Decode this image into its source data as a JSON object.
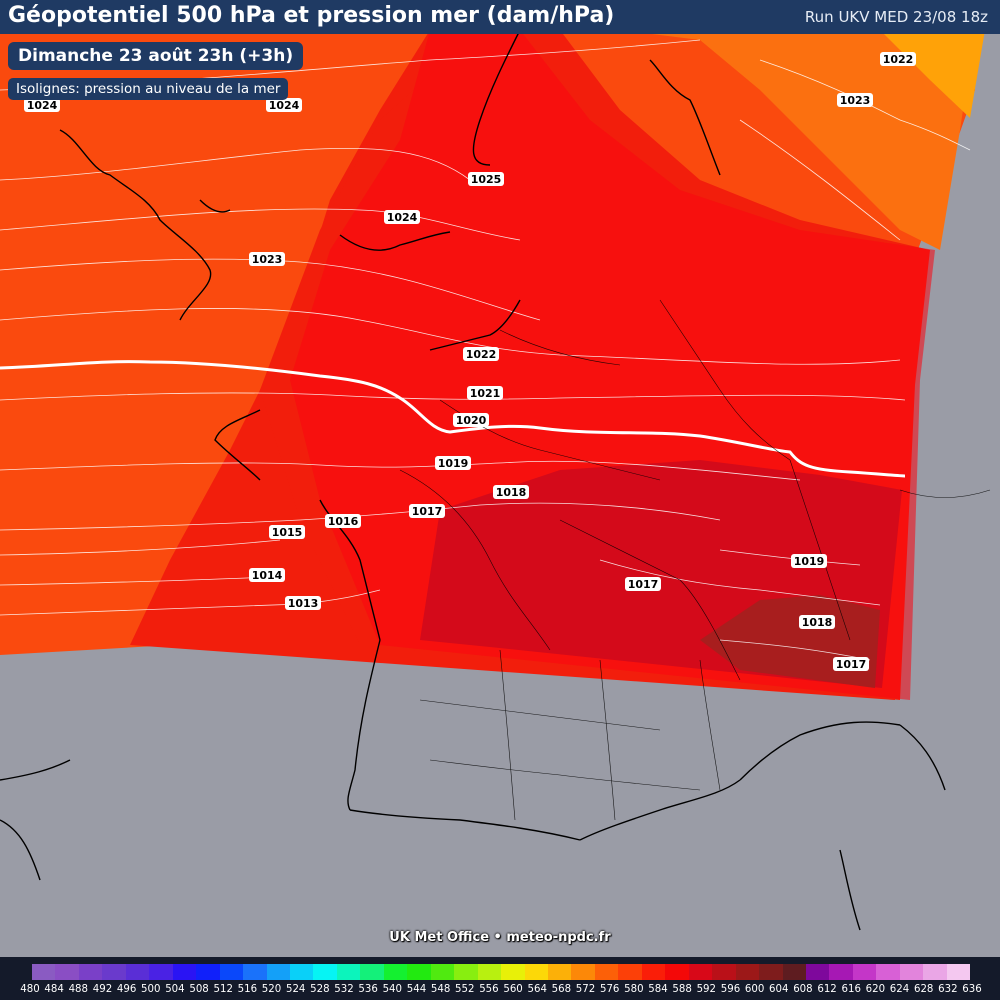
{
  "header": {
    "title": "Géopotentiel 500 hPa et pression mer (dam/hPa)",
    "run": "Run UKV MED 23/08 18z"
  },
  "date_label": "Dimanche 23 août 23h (+3h)",
  "isolines_label": "Isoligne s: pression au niveau de la mer",
  "credit": "UK Met Office • meteo-npdc.fr",
  "isobar_labels": [
    "1022",
    "1023",
    "1024",
    "1024",
    "1025",
    "1024",
    "1023",
    "1022",
    "1021",
    "1020",
    "1019",
    "1018",
    "1017",
    "1016",
    "1015",
    "1014",
    "1013",
    "1017",
    "1019",
    "1018",
    "1017"
  ],
  "legend": {
    "values": [
      "480",
      "484",
      "488",
      "492",
      "496",
      "500",
      "504",
      "508",
      "512",
      "516",
      "520",
      "524",
      "528",
      "532",
      "536",
      "540",
      "544",
      "548",
      "552",
      "556",
      "560",
      "564",
      "568",
      "572",
      "576",
      "580",
      "584",
      "588",
      "592",
      "596",
      "600",
      "604",
      "608",
      "612",
      "616",
      "620",
      "624",
      "628",
      "632",
      "636"
    ],
    "colors": [
      "#8a5bc2",
      "#8a4ec4",
      "#7a40c8",
      "#6a3acc",
      "#5a2ed6",
      "#4a22e4",
      "#2a14f4",
      "#1020fa",
      "#0a48fa",
      "#1a72fa",
      "#14a0f8",
      "#0ad0f8",
      "#06f4f4",
      "#0cf4bc",
      "#14f07a",
      "#14f030",
      "#22ea10",
      "#50ea10",
      "#88ee10",
      "#b8f010",
      "#e8f008",
      "#fcd808",
      "#fcb008",
      "#fc8808",
      "#fc6008",
      "#fc4008",
      "#fa1e08",
      "#f40808",
      "#d80818",
      "#ba1018",
      "#9c1818",
      "#7e1c1c",
      "#5e1c20",
      "#7e089c",
      "#a618b4",
      "#c436c8",
      "#d860d6",
      "#e284dc",
      "#eaa6e6",
      "#f4c8f0"
    ]
  }
}
